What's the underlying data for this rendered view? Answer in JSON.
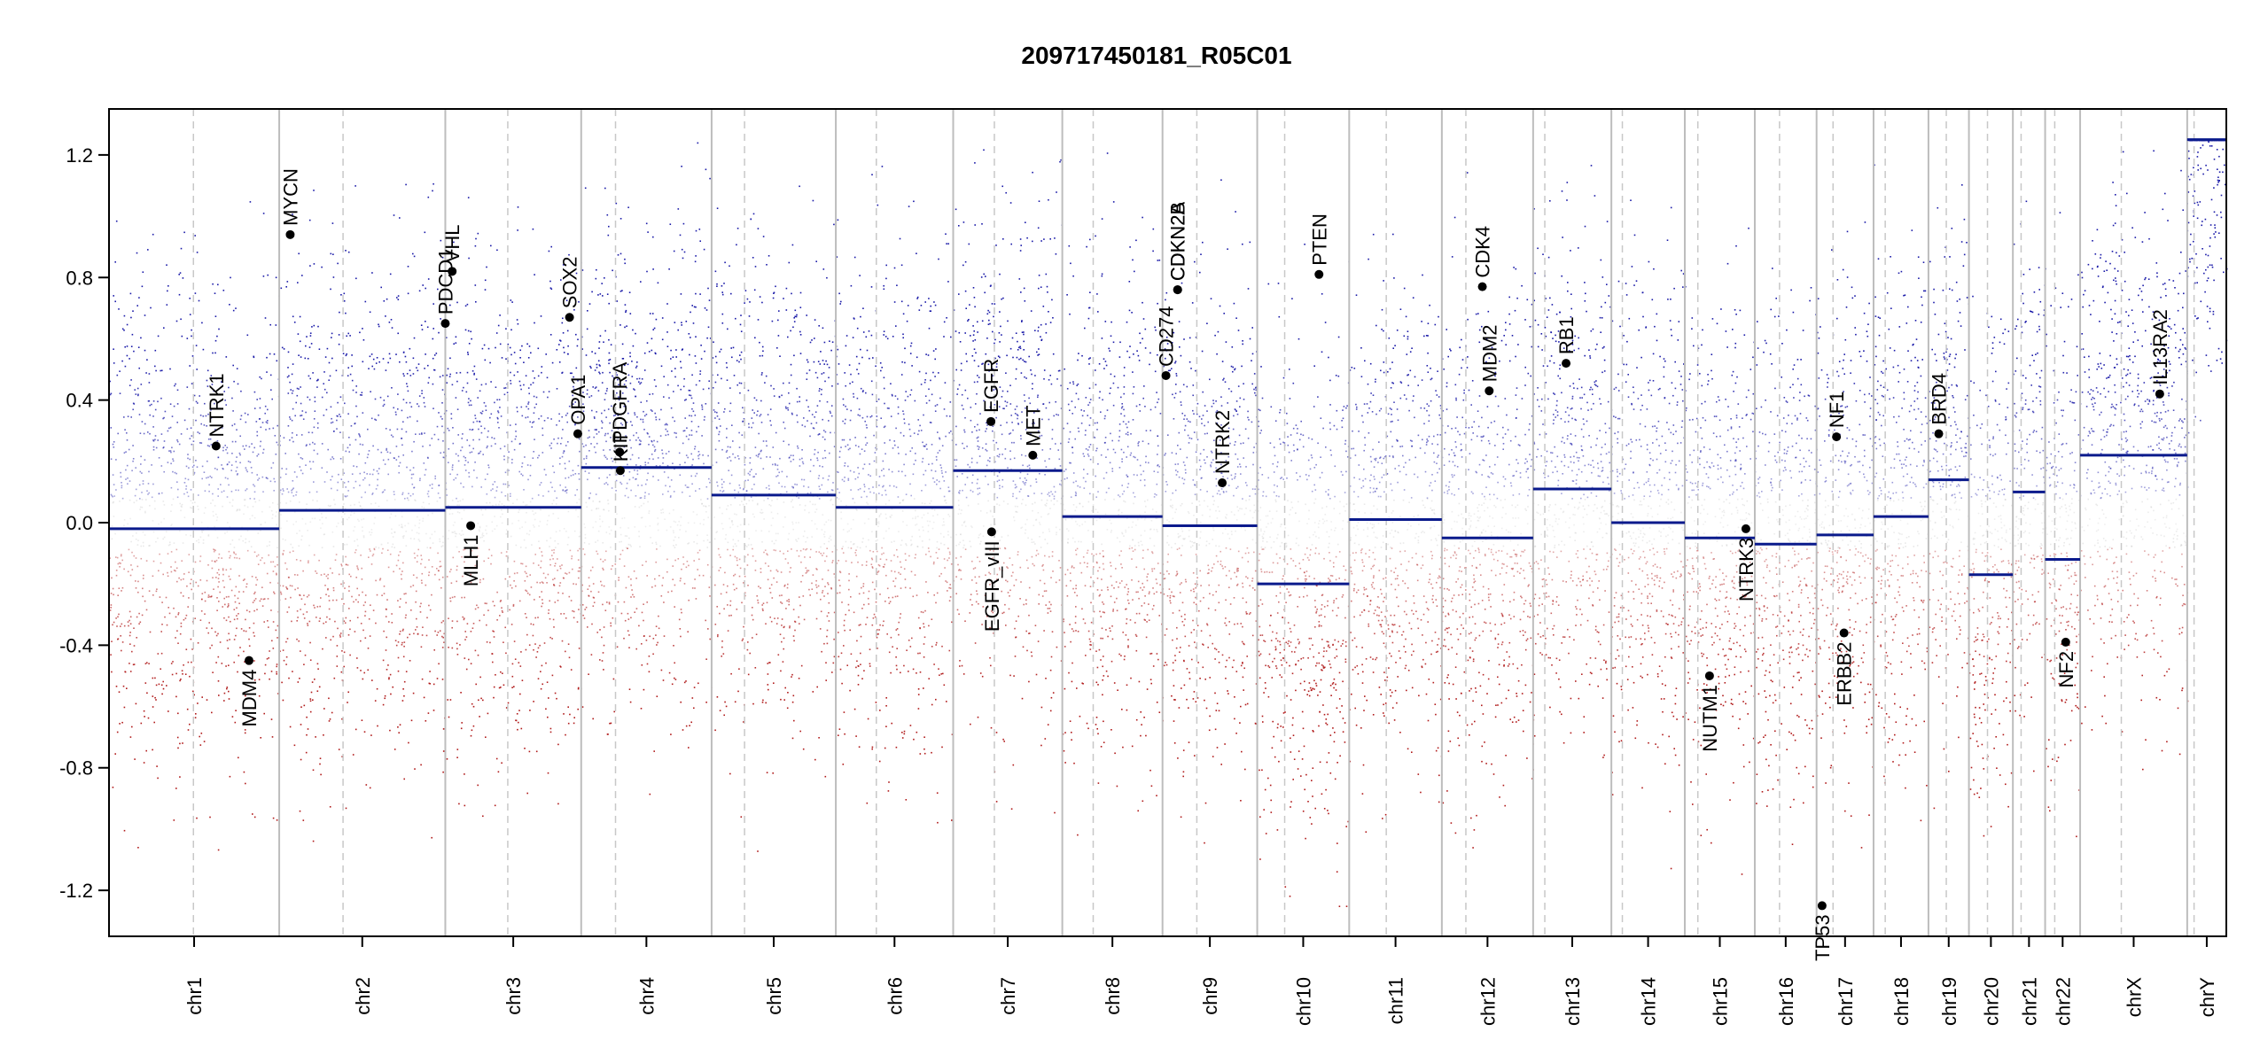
{
  "chart_data": {
    "type": "scatter",
    "title": "209717450181_R05C01",
    "xlabel": "",
    "ylabel": "",
    "ylim": [
      -1.35,
      1.35
    ],
    "yticks": [
      1.2,
      0.8,
      0.4,
      0.0,
      -0.4,
      -0.8,
      -1.2
    ],
    "ytick_labels": [
      "1.2",
      "0.8",
      "0.4",
      "0.0",
      "-0.4",
      "-0.8",
      "-1.2"
    ],
    "chromosomes": [
      {
        "name": "chr1",
        "start": 0,
        "end": 248,
        "centromere": 123,
        "segments": [
          {
            "start": 0,
            "end": 248,
            "value": -0.02
          }
        ]
      },
      {
        "name": "chr2",
        "start": 248,
        "end": 490,
        "centromere": 341,
        "segments": [
          {
            "start": 248,
            "end": 490,
            "value": 0.04
          }
        ]
      },
      {
        "name": "chr3",
        "start": 490,
        "end": 688,
        "centromere": 581,
        "segments": [
          {
            "start": 490,
            "end": 688,
            "value": 0.05
          }
        ]
      },
      {
        "name": "chr4",
        "start": 688,
        "end": 878,
        "centromere": 738,
        "segments": [
          {
            "start": 688,
            "end": 878,
            "value": 0.18
          }
        ]
      },
      {
        "name": "chr5",
        "start": 878,
        "end": 1059,
        "centromere": 926,
        "segments": [
          {
            "start": 878,
            "end": 1059,
            "value": 0.09
          }
        ]
      },
      {
        "name": "chr6",
        "start": 1059,
        "end": 1230,
        "centromere": 1118,
        "segments": [
          {
            "start": 1059,
            "end": 1230,
            "value": 0.05
          }
        ]
      },
      {
        "name": "chr7",
        "start": 1230,
        "end": 1389,
        "centromere": 1290,
        "segments": [
          {
            "start": 1230,
            "end": 1389,
            "value": 0.17
          }
        ]
      },
      {
        "name": "chr8",
        "start": 1389,
        "end": 1535,
        "centromere": 1434,
        "segments": [
          {
            "start": 1389,
            "end": 1535,
            "value": 0.02
          }
        ]
      },
      {
        "name": "chr9",
        "start": 1535,
        "end": 1673,
        "centromere": 1585,
        "segments": [
          {
            "start": 1535,
            "end": 1673,
            "value": -0.01
          }
        ]
      },
      {
        "name": "chr10",
        "start": 1673,
        "end": 1807,
        "centromere": 1713,
        "segments": [
          {
            "start": 1673,
            "end": 1807,
            "value": -0.2
          }
        ]
      },
      {
        "name": "chr11",
        "start": 1807,
        "end": 1942,
        "centromere": 1861,
        "segments": [
          {
            "start": 1807,
            "end": 1942,
            "value": 0.01
          }
        ]
      },
      {
        "name": "chr12",
        "start": 1942,
        "end": 2075,
        "centromere": 1977,
        "segments": [
          {
            "start": 1942,
            "end": 2075,
            "value": -0.05
          }
        ]
      },
      {
        "name": "chr13",
        "start": 2075,
        "end": 2189,
        "centromere": 2092,
        "segments": [
          {
            "start": 2075,
            "end": 2189,
            "value": 0.11
          }
        ]
      },
      {
        "name": "chr14",
        "start": 2189,
        "end": 2296,
        "centromere": 2205,
        "segments": [
          {
            "start": 2189,
            "end": 2296,
            "value": 0.0
          }
        ]
      },
      {
        "name": "chr15",
        "start": 2296,
        "end": 2398,
        "centromere": 2315,
        "segments": [
          {
            "start": 2296,
            "end": 2398,
            "value": -0.05
          }
        ]
      },
      {
        "name": "chr16",
        "start": 2398,
        "end": 2488,
        "centromere": 2434,
        "segments": [
          {
            "start": 2398,
            "end": 2488,
            "value": -0.07
          }
        ]
      },
      {
        "name": "chr17",
        "start": 2488,
        "end": 2571,
        "centromere": 2512,
        "segments": [
          {
            "start": 2488,
            "end": 2571,
            "value": -0.04
          }
        ]
      },
      {
        "name": "chr18",
        "start": 2571,
        "end": 2651,
        "centromere": 2588,
        "segments": [
          {
            "start": 2571,
            "end": 2651,
            "value": 0.02
          }
        ]
      },
      {
        "name": "chr19",
        "start": 2651,
        "end": 2710,
        "centromere": 2677,
        "segments": [
          {
            "start": 2651,
            "end": 2710,
            "value": 0.14
          }
        ]
      },
      {
        "name": "chr20",
        "start": 2710,
        "end": 2774,
        "centromere": 2737,
        "segments": [
          {
            "start": 2710,
            "end": 2774,
            "value": -0.17
          }
        ]
      },
      {
        "name": "chr21",
        "start": 2774,
        "end": 2821,
        "centromere": 2786,
        "segments": [
          {
            "start": 2774,
            "end": 2821,
            "value": 0.1
          }
        ]
      },
      {
        "name": "chr22",
        "start": 2821,
        "end": 2872,
        "centromere": 2835,
        "segments": [
          {
            "start": 2821,
            "end": 2872,
            "value": -0.12
          }
        ]
      },
      {
        "name": "chrX",
        "start": 2872,
        "end": 3028,
        "centromere": 2932,
        "segments": [
          {
            "start": 2872,
            "end": 3028,
            "value": 0.22
          }
        ]
      },
      {
        "name": "chrY",
        "start": 3028,
        "end": 3085,
        "centromere": 3038,
        "segments": [
          {
            "start": 3028,
            "end": 3085,
            "value": 1.25
          }
        ]
      }
    ],
    "genes": [
      {
        "name": "NTRK1",
        "pos": 156,
        "value": 0.25
      },
      {
        "name": "MDM4",
        "pos": 204,
        "value": -0.45
      },
      {
        "name": "MYCN",
        "pos": 264,
        "value": 0.94
      },
      {
        "name": "PDCD1",
        "pos": 490,
        "value": 0.65
      },
      {
        "name": "VHL",
        "pos": 500,
        "value": 0.82
      },
      {
        "name": "MLH1",
        "pos": 527,
        "value": -0.01
      },
      {
        "name": "SOX2",
        "pos": 671,
        "value": 0.67
      },
      {
        "name": "OPA1",
        "pos": 683,
        "value": 0.29
      },
      {
        "name": "PDGFRA",
        "pos": 744,
        "value": 0.23
      },
      {
        "name": "KIT",
        "pos": 745,
        "value": 0.17
      },
      {
        "name": "EGFR",
        "pos": 1285,
        "value": 0.33
      },
      {
        "name": "EGFR_vIII",
        "pos": 1286,
        "value": -0.03
      },
      {
        "name": "MET",
        "pos": 1346,
        "value": 0.22
      },
      {
        "name": "NTRK2",
        "pos": 1622,
        "value": 0.13
      },
      {
        "name": "CD274",
        "pos": 1540,
        "value": 0.48
      },
      {
        "name": "CDKN2A",
        "pos": 1557,
        "value": 0.76
      },
      {
        "name": "CDKN2B",
        "pos": 1557,
        "value": 0.76
      },
      {
        "name": "PTEN",
        "pos": 1763,
        "value": 0.81
      },
      {
        "name": "CDK4",
        "pos": 2001,
        "value": 0.77
      },
      {
        "name": "MDM2",
        "pos": 2011,
        "value": 0.43
      },
      {
        "name": "RB1",
        "pos": 2123,
        "value": 0.52
      },
      {
        "name": "NUTM1",
        "pos": 2332,
        "value": -0.5
      },
      {
        "name": "NTRK3",
        "pos": 2385,
        "value": -0.02
      },
      {
        "name": "TP53",
        "pos": 2496,
        "value": -1.25
      },
      {
        "name": "NF1",
        "pos": 2517,
        "value": 0.28
      },
      {
        "name": "ERBB2",
        "pos": 2528,
        "value": -0.36
      },
      {
        "name": "BRD4",
        "pos": 2666,
        "value": 0.29
      },
      {
        "name": "NF2",
        "pos": 2851,
        "value": -0.39
      },
      {
        "name": "IL13RA2",
        "pos": 2988,
        "value": 0.42
      }
    ],
    "colors": {
      "gain": "#1a1aa8",
      "loss": "#b01a1a",
      "neutral": "#bfbfbf",
      "segment": "#0a1a8c",
      "boundary": "#bdbdbd",
      "centromere": "#c8c8c8",
      "gene_point": "#000000"
    }
  }
}
